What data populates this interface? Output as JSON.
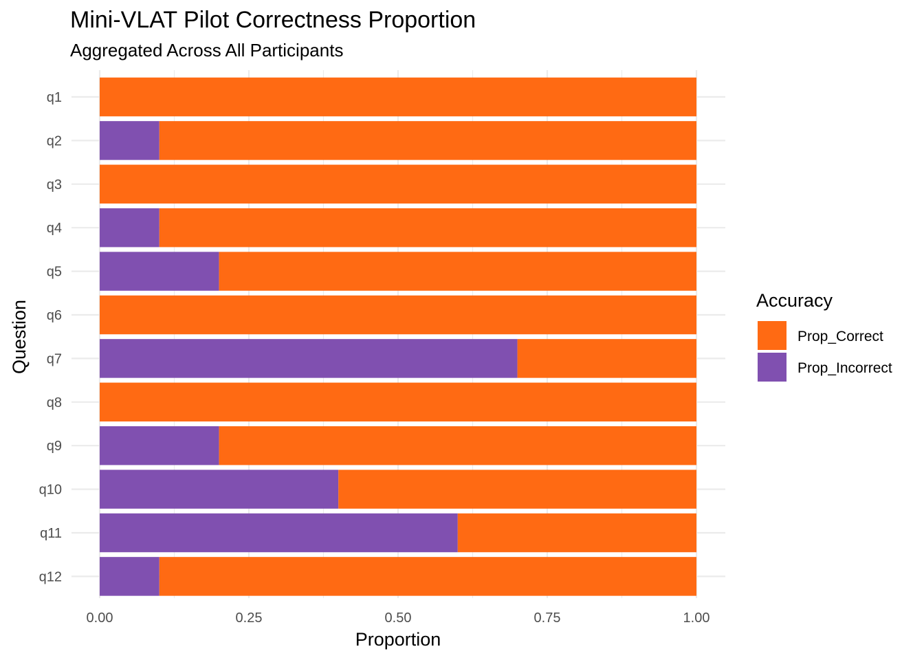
{
  "chart_data": {
    "type": "bar",
    "orientation": "horizontal",
    "stacked": true,
    "title": "Mini-VLAT Pilot Correctness Proportion",
    "subtitle": "Aggregated Across All Participants",
    "xlabel": "Proportion",
    "ylabel": "Question",
    "xlim": [
      0,
      1
    ],
    "x_ticks": [
      "0.00",
      "0.25",
      "0.50",
      "0.75",
      "1.00"
    ],
    "x_tick_values": [
      0,
      0.25,
      0.5,
      0.75,
      1.0
    ],
    "categories": [
      "q1",
      "q2",
      "q3",
      "q4",
      "q5",
      "q6",
      "q7",
      "q8",
      "q9",
      "q10",
      "q11",
      "q12"
    ],
    "series": [
      {
        "name": "Prop_Incorrect",
        "color": "#8050B0",
        "values": [
          0.0,
          0.1,
          0.0,
          0.1,
          0.2,
          0.0,
          0.7,
          0.0,
          0.2,
          0.4,
          0.6,
          0.1
        ]
      },
      {
        "name": "Prop_Correct",
        "color": "#FF6A13",
        "values": [
          1.0,
          0.9,
          1.0,
          0.9,
          0.8,
          1.0,
          0.3,
          1.0,
          0.8,
          0.6,
          0.4,
          0.9
        ]
      }
    ],
    "legend": {
      "title": "Accuracy",
      "position": "right",
      "entries": [
        {
          "label": "Prop_Correct",
          "color": "#FF6A13"
        },
        {
          "label": "Prop_Incorrect",
          "color": "#8050B0"
        }
      ]
    },
    "grid": true
  }
}
